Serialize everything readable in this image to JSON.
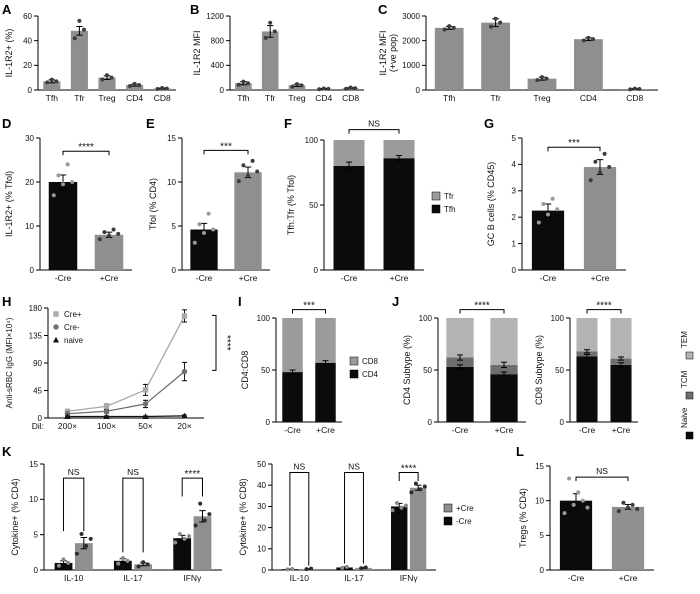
{
  "page": {
    "panel_labels": {
      "a": "A",
      "b": "B",
      "c": "C",
      "d": "D",
      "e": "E",
      "f": "F",
      "g": "G",
      "h": "H",
      "i": "I",
      "j": "J",
      "k": "K",
      "l": "L"
    }
  },
  "chart_data": [
    {
      "id": "a",
      "type": "bar",
      "title": "",
      "ylabel": "IL-1R2+ (%)",
      "xlabel": "",
      "ylim": [
        0,
        60
      ],
      "yticks": [
        0,
        20,
        40,
        60
      ],
      "grid": false,
      "categories": [
        "Tfh",
        "Tfr",
        "Treg",
        "CD4",
        "CD8"
      ],
      "series": [
        {
          "name": "IL-1R2+",
          "color": "#8f8f8f",
          "point_color": "#3d3d3d",
          "values": [
            7,
            48,
            10,
            4,
            1.2
          ],
          "errors": [
            1.2,
            3.5,
            1.5,
            0.8,
            0.4
          ],
          "points": [
            [
              6.2,
              8.4,
              7.0
            ],
            [
              42,
              56,
              49
            ],
            [
              8.5,
              12,
              10
            ],
            [
              3.2,
              5,
              4
            ],
            [
              0.8,
              1.6,
              1.1
            ]
          ]
        }
      ]
    },
    {
      "id": "b",
      "type": "bar",
      "title": "",
      "ylabel": "IL-1R2 MFI",
      "xlabel": "",
      "ylim": [
        0,
        1200
      ],
      "yticks": [
        0,
        400,
        800,
        1200
      ],
      "grid": false,
      "categories": [
        "Tfh",
        "Tfr",
        "Treg",
        "CD4",
        "CD8"
      ],
      "series": [
        {
          "name": "IL-1R2 MFI",
          "color": "#8f8f8f",
          "point_color": "#3d3d3d",
          "values": [
            110,
            950,
            75,
            18,
            28
          ],
          "errors": [
            25,
            95,
            18,
            6,
            9
          ],
          "points": [
            [
              85,
              135,
              110
            ],
            [
              845,
              1090,
              950
            ],
            [
              55,
              95,
              75
            ],
            [
              12,
              25,
              18
            ],
            [
              18,
              40,
              28
            ]
          ]
        }
      ]
    },
    {
      "id": "c",
      "type": "bar",
      "title": "",
      "ylabel": "IL-1R2 MFI",
      "ylabel2": "(+ve pop)",
      "xlabel": "",
      "ylim": [
        0,
        3000
      ],
      "yticks": [
        0,
        1000,
        2000,
        3000
      ],
      "grid": false,
      "categories": [
        "Tfh",
        "Tfr",
        "Treg",
        "CD4",
        "CD8"
      ],
      "series": [
        {
          "name": "IL-1R2 MFI +ve pop",
          "color": "#8f8f8f",
          "point_color": "#3d3d3d",
          "values": [
            2520,
            2730,
            460,
            2060,
            40
          ],
          "errors": [
            60,
            160,
            60,
            55,
            15
          ],
          "points": [
            [
              2455,
              2590,
              2520
            ],
            [
              2570,
              2890,
              2730
            ],
            [
              400,
              520,
              460
            ],
            [
              2005,
              2115,
              2060
            ],
            [
              25,
              55,
              40
            ]
          ]
        }
      ]
    },
    {
      "id": "d",
      "type": "bar",
      "title": "",
      "ylabel": "IL-1R2+ (% Tfol)",
      "xlabel": "",
      "ylim": [
        0,
        30
      ],
      "yticks": [
        0,
        10,
        20,
        30
      ],
      "grid": false,
      "categories": [
        "-Cre",
        "+Cre"
      ],
      "series": [
        {
          "name": "IL-1R2+",
          "colors": [
            "#0b0b0b",
            "#8f8f8f"
          ],
          "point_colors": [
            "#999999",
            "#3d3d3d"
          ],
          "values": [
            20,
            8
          ],
          "errors": [
            1.6,
            0.6
          ],
          "points": [
            [
              17,
              21.5,
              19.5,
              24,
              20
            ],
            [
              7,
              8.6,
              7.8,
              9.2,
              8.2
            ]
          ]
        }
      ],
      "sig": [
        {
          "a": 0,
          "b": 1,
          "y": 27,
          "label": "****"
        }
      ]
    },
    {
      "id": "e",
      "type": "bar",
      "title": "",
      "ylabel": "Tfol (% CD4)",
      "xlabel": "",
      "ylim": [
        0,
        15
      ],
      "yticks": [
        0,
        5,
        10,
        15
      ],
      "grid": false,
      "categories": [
        "-Cre",
        "+Cre"
      ],
      "series": [
        {
          "name": "Tfol",
          "colors": [
            "#0b0b0b",
            "#8f8f8f"
          ],
          "point_colors": [
            "#999999",
            "#3d3d3d"
          ],
          "values": [
            4.6,
            11.1
          ],
          "errors": [
            0.7,
            0.6
          ],
          "points": [
            [
              3.1,
              5.2,
              4.2,
              6.4,
              4.6
            ],
            [
              10.1,
              11.9,
              10.7,
              12.4,
              11.2
            ]
          ]
        }
      ],
      "sig": [
        {
          "a": 0,
          "b": 1,
          "y": 13.6,
          "label": "***"
        }
      ]
    },
    {
      "id": "f",
      "type": "stacked",
      "title": "",
      "ylabel": "Tfh:Tfr (% Tfol)",
      "xlabel": "",
      "ylim": [
        0,
        100
      ],
      "yticks": [
        0,
        50,
        100
      ],
      "grid": false,
      "categories": [
        "-Cre",
        "+Cre"
      ],
      "series": [
        {
          "name": "Tfh",
          "color": "#0b0b0b",
          "values": [
            80,
            86
          ],
          "errors": [
            3,
            2
          ]
        },
        {
          "name": "Tfr",
          "color": "#9b9b9b",
          "values": [
            20,
            14
          ]
        }
      ],
      "sig": [
        {
          "a": 0,
          "b": 1,
          "y": 108,
          "label": "NS"
        }
      ],
      "legend": {
        "pos": "right",
        "items": [
          {
            "label": "Tfr",
            "color": "#9b9b9b"
          },
          {
            "label": "Tfh",
            "color": "#0b0b0b"
          }
        ]
      }
    },
    {
      "id": "g",
      "type": "bar",
      "title": "",
      "ylabel": "GC B cells (% CD45)",
      "xlabel": "",
      "ylim": [
        0,
        5
      ],
      "yticks": [
        0,
        1,
        2,
        3,
        4,
        5
      ],
      "grid": false,
      "categories": [
        "-Cre",
        "+Cre"
      ],
      "series": [
        {
          "name": "GC B cells",
          "colors": [
            "#0b0b0b",
            "#8f8f8f"
          ],
          "point_colors": [
            "#999999",
            "#3d3d3d"
          ],
          "values": [
            2.25,
            3.9
          ],
          "errors": [
            0.25,
            0.28
          ],
          "points": [
            [
              1.8,
              2.5,
              2.1,
              2.7,
              2.3
            ],
            [
              3.4,
              4.1,
              3.7,
              4.4,
              3.9
            ]
          ]
        }
      ],
      "sig": [
        {
          "a": 0,
          "b": 1,
          "y": 4.65,
          "label": "***"
        }
      ]
    },
    {
      "id": "h",
      "type": "line",
      "title": "",
      "ylabel": "Anti-sRBC IgG (MFI×10⁴)",
      "xlabel": "",
      "xprefix": "Dil:",
      "ylim": [
        0,
        180
      ],
      "yticks": [
        0,
        45,
        90,
        135,
        180
      ],
      "grid": false,
      "categories": [
        "200×",
        "100×",
        "50×",
        "20×"
      ],
      "series": [
        {
          "name": "Cre+",
          "color": "#a9a9a9",
          "marker": "square",
          "values": [
            11,
            19,
            46,
            167
          ],
          "errors": [
            3,
            4,
            9,
            10
          ]
        },
        {
          "name": "Cre-",
          "color": "#707070",
          "marker": "circle",
          "values": [
            7,
            11,
            23,
            76
          ],
          "errors": [
            2,
            3,
            6,
            15
          ]
        },
        {
          "name": "naive",
          "color": "#141414",
          "marker": "triangle",
          "values": [
            2.5,
            2.5,
            2.5,
            3.5
          ],
          "errors": [
            1,
            1,
            1,
            1.5
          ]
        }
      ],
      "legend": {
        "pos": "inside-tl",
        "items": [
          {
            "label": "Cre+",
            "color": "#a9a9a9",
            "marker": "square"
          },
          {
            "label": "Cre-",
            "color": "#707070",
            "marker": "circle"
          },
          {
            "label": "naive",
            "color": "#141414",
            "marker": "triangle"
          }
        ]
      },
      "sig_right": {
        "label": "****",
        "y1": 78,
        "y2": 168
      }
    },
    {
      "id": "i",
      "type": "stacked",
      "title": "",
      "ylabel": "CD4:CD8",
      "xlabel": "",
      "ylim": [
        0,
        100
      ],
      "yticks": [
        0,
        50,
        100
      ],
      "grid": false,
      "categories": [
        "-Cre",
        "+Cre"
      ],
      "series": [
        {
          "name": "CD4",
          "color": "#0b0b0b",
          "values": [
            48,
            57
          ],
          "errors": [
            2,
            2
          ]
        },
        {
          "name": "CD8",
          "color": "#9b9b9b",
          "values": [
            52,
            43
          ]
        }
      ],
      "sig": [
        {
          "a": 0,
          "b": 1,
          "y": 108,
          "label": "***"
        }
      ],
      "legend": {
        "pos": "right",
        "items": [
          {
            "label": "CD8",
            "color": "#9b9b9b"
          },
          {
            "label": "CD4",
            "color": "#0b0b0b"
          }
        ]
      }
    },
    {
      "id": "j1",
      "type": "stacked",
      "title": "",
      "ylabel": "CD4 Subtype (%)",
      "xlabel": "",
      "ylim": [
        0,
        100
      ],
      "yticks": [
        0,
        50,
        100
      ],
      "grid": false,
      "categories": [
        "-Cre",
        "+Cre"
      ],
      "series": [
        {
          "name": "Naive",
          "color": "#0b0b0b",
          "values": [
            53,
            46
          ],
          "errors": [
            2,
            2
          ]
        },
        {
          "name": "TCM",
          "color": "#6e6e6e",
          "values": [
            9,
            9
          ],
          "errors": [
            2.5,
            2.5
          ]
        },
        {
          "name": "TEM",
          "color": "#b3b3b3",
          "values": [
            38,
            45
          ]
        }
      ],
      "sig": [
        {
          "a": 0,
          "b": 1,
          "y": 108,
          "label": "****"
        }
      ]
    },
    {
      "id": "j2",
      "type": "stacked",
      "title": "",
      "ylabel": "CD8 Subtype (%)",
      "xlabel": "",
      "ylim": [
        0,
        100
      ],
      "yticks": [
        0,
        50,
        100
      ],
      "grid": false,
      "categories": [
        "-Cre",
        "+Cre"
      ],
      "series": [
        {
          "name": "Naive",
          "color": "#0b0b0b",
          "values": [
            63,
            55
          ],
          "errors": [
            2,
            2
          ]
        },
        {
          "name": "TCM",
          "color": "#6e6e6e",
          "values": [
            5,
            6
          ],
          "errors": [
            1.5,
            1.5
          ]
        },
        {
          "name": "TEM",
          "color": "#b3b3b3",
          "values": [
            32,
            39
          ]
        }
      ],
      "sig": [
        {
          "a": 0,
          "b": 1,
          "y": 108,
          "label": "****"
        }
      ],
      "legend": {
        "pos": "right-rot",
        "rotated": true,
        "items": [
          {
            "label": "TEM",
            "color": "#b3b3b3"
          },
          {
            "label": "TCM",
            "color": "#6e6e6e"
          },
          {
            "label": "Naive",
            "color": "#0b0b0b"
          }
        ]
      }
    },
    {
      "id": "k1",
      "type": "grouped",
      "title": "",
      "ylabel": "Cytokine+ (% CD4)",
      "xlabel": "",
      "ylim": [
        0,
        15
      ],
      "yticks": [
        0,
        5,
        10,
        15
      ],
      "grid": false,
      "categories": [
        "IL-10",
        "IL-17",
        "IFNγ"
      ],
      "series": [
        {
          "name": "-Cre",
          "color": "#0b0b0b",
          "point_color": "#8a8a8a",
          "values": [
            1.0,
            1.3,
            4.5
          ],
          "errors": [
            0.3,
            0.3,
            0.4
          ],
          "points": [
            [
              0.6,
              1.5,
              1.0
            ],
            [
              0.9,
              1.7,
              1.3
            ],
            [
              3.9,
              5.1,
              4.4,
              4.8
            ]
          ]
        },
        {
          "name": "+Cre",
          "color": "#8f8f8f",
          "point_color": "#2e2e2e",
          "values": [
            3.8,
            0.8,
            7.6
          ],
          "errors": [
            0.8,
            0.2,
            0.8
          ],
          "points": [
            [
              2.3,
              5.1,
              3.4,
              4.4
            ],
            [
              0.5,
              1.1,
              0.8
            ],
            [
              6.3,
              9.4,
              7.0,
              7.9
            ]
          ]
        }
      ],
      "sig": [
        {
          "group": 0,
          "y": 13,
          "drop": 7.5,
          "label": "NS"
        },
        {
          "group": 1,
          "y": 13,
          "drop": 10.5,
          "label": "NS"
        },
        {
          "group": 2,
          "y": 13,
          "drop": 2.6,
          "label": "****"
        }
      ]
    },
    {
      "id": "k2",
      "type": "grouped",
      "title": "",
      "ylabel": "Cytokine+ (% CD8)",
      "xlabel": "",
      "ylim": [
        0,
        50
      ],
      "yticks": [
        0,
        10,
        20,
        30,
        40,
        50
      ],
      "grid": false,
      "categories": [
        "IL-10",
        "IL-17",
        "IFNγ"
      ],
      "series": [
        {
          "name": "-Cre",
          "color": "#0b0b0b",
          "point_color": "#8a8a8a",
          "values": [
            0.4,
            1.2,
            30
          ],
          "errors": [
            0.1,
            0.3,
            1.4
          ],
          "points": [
            [
              0.3,
              0.5
            ],
            [
              1.0,
              1.5
            ],
            [
              28.2,
              31.6,
              29.4,
              30.4
            ]
          ]
        },
        {
          "name": "+Cre",
          "color": "#8f8f8f",
          "point_color": "#2e2e2e",
          "values": [
            0.5,
            1.0,
            38.8
          ],
          "errors": [
            0.15,
            0.25,
            1.2
          ],
          "points": [
            [
              0.4,
              0.65
            ],
            [
              0.8,
              1.2
            ],
            [
              36.6,
              40.8,
              38.1,
              39.4
            ]
          ]
        }
      ],
      "sig": [
        {
          "group": 0,
          "y": 46,
          "drop": 44,
          "label": "NS"
        },
        {
          "group": 1,
          "y": 46,
          "drop": 43,
          "label": "NS"
        },
        {
          "group": 2,
          "y": 46,
          "drop": 4,
          "label": "****"
        }
      ],
      "legend": {
        "pos": "right",
        "items": [
          {
            "label": "+Cre",
            "color": "#8f8f8f"
          },
          {
            "label": "-Cre",
            "color": "#0b0b0b"
          }
        ]
      }
    },
    {
      "id": "l",
      "type": "bar",
      "title": "",
      "ylabel": "Tregs (% CD4)",
      "xlabel": "",
      "ylim": [
        0,
        15
      ],
      "yticks": [
        0,
        5,
        10,
        15
      ],
      "grid": false,
      "categories": [
        "-Cre",
        "+Cre"
      ],
      "series": [
        {
          "name": "Tregs",
          "colors": [
            "#0b0b0b",
            "#8f8f8f"
          ],
          "point_colors": [
            "#999999",
            "#3d3d3d"
          ],
          "values": [
            10,
            9.1
          ],
          "errors": [
            1.0,
            0.35
          ],
          "points": [
            [
              8.2,
              13.2,
              9.4,
              11.2,
              10,
              9.0
            ],
            [
              8.5,
              9.7,
              9.0,
              9.4,
              8.8
            ]
          ]
        }
      ],
      "sig": [
        {
          "a": 0,
          "b": 1,
          "y": 13.4,
          "label": "NS"
        }
      ]
    }
  ]
}
